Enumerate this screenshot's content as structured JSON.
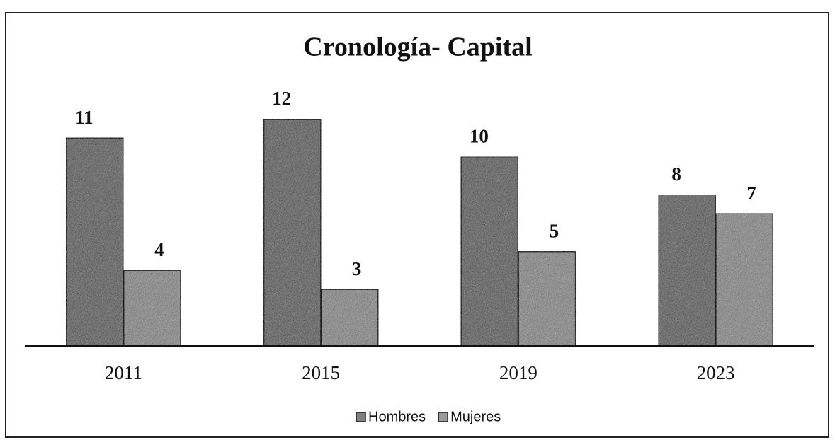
{
  "chart_data": {
    "type": "bar",
    "title": "Cronología- Capital",
    "categories": [
      "2011",
      "2015",
      "2019",
      "2023"
    ],
    "series": [
      {
        "name": "Hombres",
        "color": "#808080",
        "values": [
          11,
          12,
          10,
          8
        ]
      },
      {
        "name": "Mujeres",
        "color": "#9a9a9a",
        "values": [
          4,
          3,
          5,
          7
        ]
      }
    ],
    "ylim": [
      0,
      12
    ],
    "legend": "bottom"
  }
}
